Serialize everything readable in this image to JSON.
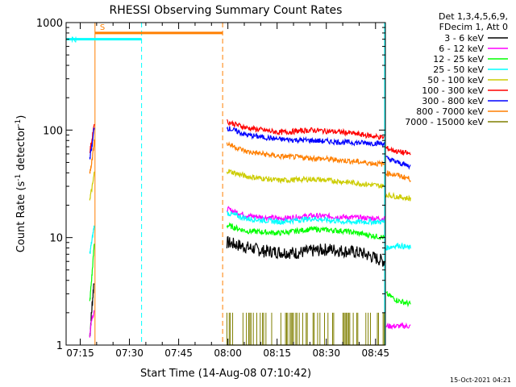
{
  "chart_data": {
    "type": "line",
    "title": "RHESSI Observing Summary Count Rates",
    "xlabel": "Start Time (14-Aug-08 07:10:42)",
    "ylabel_main": "Count Rate (s",
    "ylabel_sup1": "-1",
    "ylabel_mid": " detector",
    "ylabel_sup2": "-1",
    "ylabel_end": ")",
    "yscale": "log",
    "xlim": [
      "07:10:42",
      "08:48"
    ],
    "ylim": [
      1,
      1000
    ],
    "x_ticks": [
      "07:15",
      "07:30",
      "07:45",
      "08:00",
      "08:15",
      "08:30",
      "08:45"
    ],
    "y_ticks": [
      "1",
      "10",
      "100",
      "1000"
    ],
    "legend_header": [
      "Det 1,3,4,5,6,9,",
      "FDecim 1, Att 0"
    ],
    "legend_position": "right",
    "series": [
      {
        "name": "3 - 6 keV",
        "color": "#000000",
        "pre": [
          [
            7.2,
            1.2
          ],
          [
            8.0,
            2.5
          ],
          [
            8.5,
            4.0
          ]
        ],
        "mid": [
          [
            49,
            9.0
          ],
          [
            60,
            7.5
          ],
          [
            70,
            7.2
          ],
          [
            80,
            7.8
          ],
          [
            90,
            7.2
          ],
          [
            97,
            6.0
          ]
        ],
        "post": []
      },
      {
        "name": "6 - 12 keV",
        "color": "#ff00ff",
        "pre": [
          [
            7.2,
            1.2
          ],
          [
            7.8,
            1.8
          ],
          [
            8.6,
            2.0
          ]
        ],
        "mid": [
          [
            49,
            18.5
          ],
          [
            55,
            16.0
          ],
          [
            65,
            15.0
          ],
          [
            75,
            16.0
          ],
          [
            85,
            15.5
          ],
          [
            97,
            15.0
          ]
        ],
        "post": [
          [
            97.5,
            1.5
          ],
          [
            101,
            1.5
          ],
          [
            105,
            1.5
          ]
        ]
      },
      {
        "name": "12 - 25 keV",
        "color": "#00ff00",
        "pre": [
          [
            7.2,
            2.5
          ],
          [
            8.0,
            5.0
          ],
          [
            8.6,
            9.0
          ]
        ],
        "mid": [
          [
            49,
            13.0
          ],
          [
            55,
            11.5
          ],
          [
            65,
            11.0
          ],
          [
            75,
            12.0
          ],
          [
            85,
            11.5
          ],
          [
            97,
            10.0
          ]
        ],
        "post": [
          [
            97.5,
            3.0
          ],
          [
            101,
            2.6
          ],
          [
            105,
            2.4
          ]
        ]
      },
      {
        "name": "25 - 50 keV",
        "color": "#00ffff",
        "pre": [
          [
            7.2,
            7.0
          ],
          [
            8.0,
            10.0
          ],
          [
            8.6,
            13.0
          ]
        ],
        "mid": [
          [
            49,
            17.0
          ],
          [
            55,
            15.0
          ],
          [
            65,
            14.0
          ],
          [
            75,
            15.0
          ],
          [
            85,
            14.0
          ],
          [
            97,
            14.0
          ]
        ],
        "post": [
          [
            97.5,
            8.0
          ],
          [
            101,
            8.5
          ],
          [
            105,
            8.0
          ]
        ]
      },
      {
        "name": "50 - 100 keV",
        "color": "#cccc00",
        "pre": [
          [
            7.2,
            23.0
          ],
          [
            8.0,
            30.0
          ],
          [
            8.6,
            40.0
          ]
        ],
        "mid": [
          [
            49,
            42.0
          ],
          [
            55,
            37.0
          ],
          [
            65,
            34.0
          ],
          [
            75,
            35.0
          ],
          [
            85,
            33.0
          ],
          [
            97,
            30.0
          ]
        ],
        "post": [
          [
            97.5,
            25.0
          ],
          [
            101,
            24.0
          ],
          [
            105,
            23.0
          ]
        ]
      },
      {
        "name": "100 - 300 keV",
        "color": "#ff0000",
        "pre": [
          [
            7.2,
            62.0
          ],
          [
            8.0,
            85.0
          ],
          [
            8.6,
            120.0
          ]
        ],
        "mid": [
          [
            49,
            120.0
          ],
          [
            55,
            105.0
          ],
          [
            65,
            95.0
          ],
          [
            75,
            100.0
          ],
          [
            85,
            95.0
          ],
          [
            97,
            85.0
          ]
        ],
        "post": [
          [
            97.5,
            68.0
          ],
          [
            101,
            63.0
          ],
          [
            105,
            60.0
          ]
        ]
      },
      {
        "name": "300 - 800 keV",
        "color": "#0000ff",
        "pre": [
          [
            7.2,
            55.0
          ],
          [
            8.0,
            75.0
          ],
          [
            8.6,
            110.0
          ]
        ],
        "mid": [
          [
            49,
            105.0
          ],
          [
            55,
            90.0
          ],
          [
            65,
            82.0
          ],
          [
            75,
            80.0
          ],
          [
            85,
            77.0
          ],
          [
            97,
            75.0
          ]
        ],
        "post": [
          [
            97.5,
            55.0
          ],
          [
            101,
            50.0
          ],
          [
            105,
            46.0
          ]
        ]
      },
      {
        "name": "800 - 7000 keV",
        "color": "#ff7f00",
        "pre": [
          [
            7.2,
            40.0
          ],
          [
            8.0,
            55.0
          ],
          [
            8.6,
            80.0
          ]
        ],
        "mid": [
          [
            49,
            75.0
          ],
          [
            55,
            63.0
          ],
          [
            65,
            57.0
          ],
          [
            75,
            55.0
          ],
          [
            85,
            52.0
          ],
          [
            97,
            48.0
          ]
        ],
        "post": [
          [
            97.5,
            40.0
          ],
          [
            101,
            38.0
          ],
          [
            105,
            35.0
          ]
        ]
      },
      {
        "name": "7000 - 15000 keV",
        "color": "#7f7f00",
        "pre": [],
        "mid": [
          [
            49,
            1.0
          ],
          [
            60,
            1.0
          ],
          [
            70,
            1.0
          ],
          [
            80,
            1.0
          ],
          [
            90,
            1.0
          ],
          [
            97,
            1.0
          ]
        ],
        "post": []
      }
    ],
    "flags": [
      {
        "label": "S",
        "color": "#ff7f00",
        "start": 8.8,
        "end": 47.7,
        "y": 800
      },
      {
        "label": "N",
        "color": "#00ffff",
        "start": -2.5,
        "end": 23.0,
        "y": 700
      },
      {
        "label": "",
        "color": "#00ffff",
        "start": 97.3,
        "end": 120.0,
        "y": 700
      }
    ],
    "vlines": [
      {
        "x": 8.8,
        "color": "#ff7f00",
        "style": "solid"
      },
      {
        "x": 23.0,
        "color": "#00ffff",
        "style": "dashed"
      },
      {
        "x": 47.7,
        "color": "#ff7f00",
        "style": "dashed"
      },
      {
        "x": 97.3,
        "color": "#00ffff",
        "style": "solid"
      },
      {
        "x": 120.0,
        "color": "#00ffff",
        "style": "dashed"
      }
    ]
  },
  "footer_date": "15-Oct-2021 04:21"
}
